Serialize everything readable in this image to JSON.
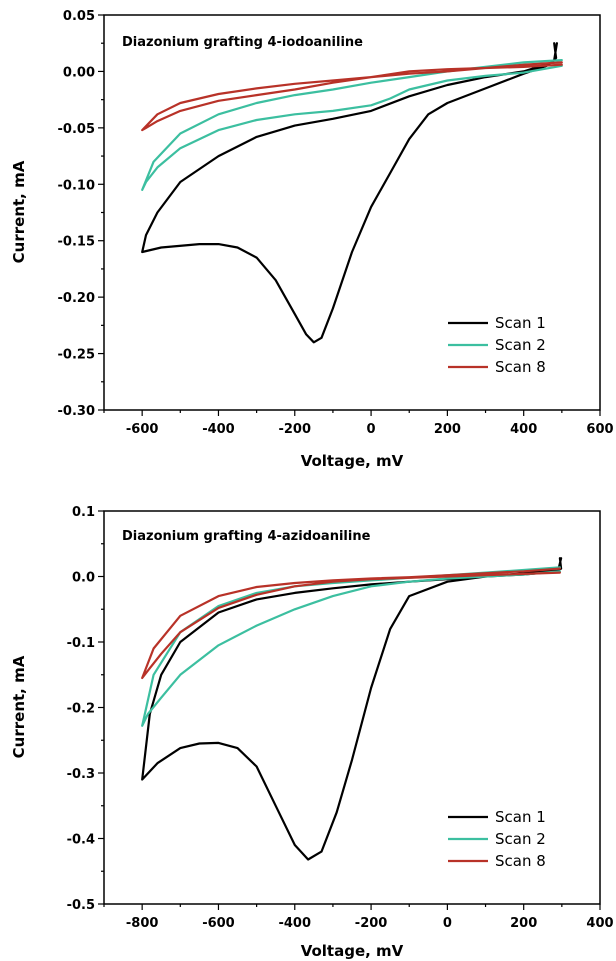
{
  "chart_data": [
    {
      "type": "line",
      "title": "Diazonium grafting 4-iodoaniline",
      "xlabel": "Voltage, mV",
      "ylabel": "Current, mA",
      "xlim": [
        -700,
        600
      ],
      "ylim": [
        -0.3,
        0.05
      ],
      "xticks": [
        -600,
        -400,
        -200,
        0,
        200,
        400,
        600
      ],
      "xtick_labels": [
        "-600",
        "-400",
        "-200",
        "0",
        "200",
        "400",
        "600"
      ],
      "yticks": [
        0.05,
        0.0,
        -0.05,
        -0.1,
        -0.15,
        -0.2,
        -0.25,
        -0.3
      ],
      "ytick_labels": [
        "0.05",
        "0.00",
        "-0.05",
        "-0.10",
        "-0.15",
        "-0.20",
        "-0.25",
        "-0.30"
      ],
      "grid": false,
      "legend_position": "bottom-right",
      "series": [
        {
          "name": "Scan 1",
          "color": "#000000",
          "points": [
            [
              480,
              0.025
            ],
            [
              485,
              0.012
            ],
            [
              475,
              0.008
            ],
            [
              400,
              0.0
            ],
            [
              300,
              -0.005
            ],
            [
              200,
              -0.012
            ],
            [
              100,
              -0.022
            ],
            [
              0,
              -0.035
            ],
            [
              -100,
              -0.042
            ],
            [
              -200,
              -0.048
            ],
            [
              -300,
              -0.058
            ],
            [
              -400,
              -0.075
            ],
            [
              -500,
              -0.098
            ],
            [
              -560,
              -0.125
            ],
            [
              -590,
              -0.145
            ],
            [
              -600,
              -0.16
            ],
            [
              -550,
              -0.156
            ],
            [
              -450,
              -0.153
            ],
            [
              -400,
              -0.153
            ],
            [
              -350,
              -0.156
            ],
            [
              -300,
              -0.165
            ],
            [
              -250,
              -0.185
            ],
            [
              -200,
              -0.215
            ],
            [
              -170,
              -0.233
            ],
            [
              -150,
              -0.24
            ],
            [
              -130,
              -0.236
            ],
            [
              -100,
              -0.21
            ],
            [
              -50,
              -0.16
            ],
            [
              0,
              -0.12
            ],
            [
              50,
              -0.09
            ],
            [
              100,
              -0.06
            ],
            [
              150,
              -0.038
            ],
            [
              200,
              -0.028
            ],
            [
              300,
              -0.015
            ],
            [
              400,
              -0.002
            ],
            [
              460,
              0.005
            ],
            [
              480,
              0.01
            ],
            [
              487,
              0.025
            ]
          ]
        },
        {
          "name": "Scan 2",
          "color": "#3cbfa0",
          "points": [
            [
              500,
              0.01
            ],
            [
              400,
              0.008
            ],
            [
              300,
              0.004
            ],
            [
              200,
              0.0
            ],
            [
              100,
              -0.005
            ],
            [
              0,
              -0.01
            ],
            [
              -100,
              -0.016
            ],
            [
              -200,
              -0.021
            ],
            [
              -300,
              -0.028
            ],
            [
              -400,
              -0.038
            ],
            [
              -500,
              -0.055
            ],
            [
              -570,
              -0.08
            ],
            [
              -600,
              -0.105
            ],
            [
              -590,
              -0.098
            ],
            [
              -560,
              -0.085
            ],
            [
              -500,
              -0.068
            ],
            [
              -400,
              -0.052
            ],
            [
              -300,
              -0.043
            ],
            [
              -200,
              -0.038
            ],
            [
              -100,
              -0.035
            ],
            [
              0,
              -0.03
            ],
            [
              50,
              -0.024
            ],
            [
              100,
              -0.016
            ],
            [
              200,
              -0.008
            ],
            [
              300,
              -0.004
            ],
            [
              400,
              -0.001
            ],
            [
              500,
              0.005
            ]
          ]
        },
        {
          "name": "Scan 8",
          "color": "#b83228",
          "points": [
            [
              500,
              0.008
            ],
            [
              400,
              0.006
            ],
            [
              300,
              0.003
            ],
            [
              200,
              0.0
            ],
            [
              100,
              -0.002
            ],
            [
              0,
              -0.005
            ],
            [
              -100,
              -0.008
            ],
            [
              -200,
              -0.011
            ],
            [
              -300,
              -0.015
            ],
            [
              -400,
              -0.02
            ],
            [
              -500,
              -0.028
            ],
            [
              -560,
              -0.038
            ],
            [
              -600,
              -0.052
            ],
            [
              -590,
              -0.05
            ],
            [
              -560,
              -0.044
            ],
            [
              -500,
              -0.035
            ],
            [
              -400,
              -0.026
            ],
            [
              -300,
              -0.021
            ],
            [
              -200,
              -0.016
            ],
            [
              -100,
              -0.01
            ],
            [
              0,
              -0.005
            ],
            [
              100,
              0.0
            ],
            [
              200,
              0.002
            ],
            [
              300,
              0.003
            ],
            [
              400,
              0.004
            ],
            [
              500,
              0.006
            ]
          ]
        }
      ]
    },
    {
      "type": "line",
      "title": "Diazonium grafting 4-azidoaniline",
      "xlabel": "Voltage, mV",
      "ylabel": "Current, mA",
      "xlim": [
        -900,
        400
      ],
      "ylim": [
        -0.5,
        0.1
      ],
      "xticks": [
        -800,
        -600,
        -400,
        -200,
        0,
        200,
        400
      ],
      "xtick_labels": [
        "-800",
        "-600",
        "-400",
        "-200",
        "0",
        "200",
        "400"
      ],
      "yticks": [
        0.1,
        0.0,
        -0.1,
        -0.2,
        -0.3,
        -0.4,
        -0.5
      ],
      "ytick_labels": [
        "0.1",
        "0.0",
        "-0.1",
        "-0.2",
        "-0.3",
        "-0.4",
        "-0.5"
      ],
      "grid": false,
      "legend_position": "bottom-right",
      "series": [
        {
          "name": "Scan 1",
          "color": "#000000",
          "points": [
            [
              295,
              0.028
            ],
            [
              298,
              0.012
            ],
            [
              290,
              0.01
            ],
            [
              200,
              0.005
            ],
            [
              100,
              0.0
            ],
            [
              0,
              -0.004
            ],
            [
              -100,
              -0.008
            ],
            [
              -200,
              -0.012
            ],
            [
              -300,
              -0.018
            ],
            [
              -400,
              -0.025
            ],
            [
              -500,
              -0.035
            ],
            [
              -600,
              -0.055
            ],
            [
              -700,
              -0.1
            ],
            [
              -750,
              -0.15
            ],
            [
              -780,
              -0.21
            ],
            [
              -800,
              -0.31
            ],
            [
              -760,
              -0.285
            ],
            [
              -700,
              -0.262
            ],
            [
              -650,
              -0.255
            ],
            [
              -600,
              -0.254
            ],
            [
              -550,
              -0.262
            ],
            [
              -500,
              -0.29
            ],
            [
              -450,
              -0.35
            ],
            [
              -400,
              -0.41
            ],
            [
              -365,
              -0.432
            ],
            [
              -330,
              -0.42
            ],
            [
              -290,
              -0.36
            ],
            [
              -250,
              -0.28
            ],
            [
              -200,
              -0.17
            ],
            [
              -150,
              -0.08
            ],
            [
              -100,
              -0.03
            ],
            [
              0,
              -0.008
            ],
            [
              100,
              0.0
            ],
            [
              200,
              0.003
            ],
            [
              290,
              0.008
            ],
            [
              298,
              0.028
            ]
          ]
        },
        {
          "name": "Scan 2",
          "color": "#3cbfa0",
          "points": [
            [
              295,
              0.014
            ],
            [
              200,
              0.01
            ],
            [
              100,
              0.006
            ],
            [
              0,
              0.002
            ],
            [
              -100,
              -0.002
            ],
            [
              -200,
              -0.006
            ],
            [
              -300,
              -0.01
            ],
            [
              -400,
              -0.015
            ],
            [
              -500,
              -0.025
            ],
            [
              -600,
              -0.045
            ],
            [
              -700,
              -0.085
            ],
            [
              -770,
              -0.15
            ],
            [
              -800,
              -0.228
            ],
            [
              -785,
              -0.21
            ],
            [
              -750,
              -0.185
            ],
            [
              -700,
              -0.15
            ],
            [
              -600,
              -0.105
            ],
            [
              -500,
              -0.075
            ],
            [
              -400,
              -0.05
            ],
            [
              -300,
              -0.03
            ],
            [
              -200,
              -0.015
            ],
            [
              -100,
              -0.008
            ],
            [
              0,
              -0.003
            ],
            [
              100,
              0.0
            ],
            [
              200,
              0.003
            ],
            [
              295,
              0.008
            ]
          ]
        },
        {
          "name": "Scan 8",
          "color": "#b83228",
          "points": [
            [
              295,
              0.012
            ],
            [
              200,
              0.008
            ],
            [
              100,
              0.005
            ],
            [
              0,
              0.002
            ],
            [
              -100,
              -0.001
            ],
            [
              -200,
              -0.003
            ],
            [
              -300,
              -0.006
            ],
            [
              -400,
              -0.01
            ],
            [
              -500,
              -0.016
            ],
            [
              -600,
              -0.03
            ],
            [
              -700,
              -0.06
            ],
            [
              -770,
              -0.11
            ],
            [
              -800,
              -0.155
            ],
            [
              -780,
              -0.14
            ],
            [
              -750,
              -0.118
            ],
            [
              -700,
              -0.085
            ],
            [
              -600,
              -0.048
            ],
            [
              -500,
              -0.028
            ],
            [
              -400,
              -0.015
            ],
            [
              -300,
              -0.008
            ],
            [
              -200,
              -0.004
            ],
            [
              -100,
              -0.002
            ],
            [
              0,
              0.0
            ],
            [
              100,
              0.002
            ],
            [
              200,
              0.004
            ],
            [
              295,
              0.006
            ]
          ]
        }
      ]
    }
  ]
}
